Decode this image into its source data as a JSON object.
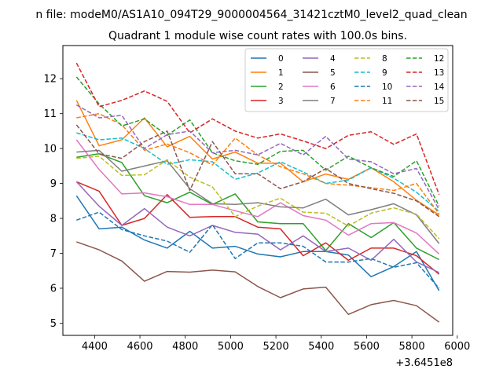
{
  "header": {
    "filename_line": "n file: modeM0/AS1A10_094T29_9000004564_31421cztM0_level2_quad_clean",
    "title": "Quadrant 1 module wise count rates with 100.0s bins."
  },
  "chart_data": {
    "type": "line",
    "title": "Quadrant 1 module wise count rates with 100.0s bins.",
    "xlabel": "",
    "ylabel": "",
    "x_offset_label": "+3.6451e8",
    "x_offset": 364510000,
    "xlim": [
      4260,
      5980
    ],
    "ylim": [
      4.65,
      12.95
    ],
    "xticks": [
      4400,
      4600,
      4800,
      5000,
      5200,
      5400,
      5600,
      5800,
      6000
    ],
    "xtick_labels": [
      "4400",
      "4600",
      "4800",
      "5000",
      "5200",
      "5400",
      "5600",
      "5800",
      "6000"
    ],
    "yticks": [
      5,
      6,
      7,
      8,
      9,
      10,
      11,
      12
    ],
    "ytick_labels": [
      "5",
      "6",
      "7",
      "8",
      "9",
      "10",
      "11",
      "12"
    ],
    "grid": false,
    "legend_position": "top-right",
    "legend_columns": 4,
    "x": [
      4320,
      4420,
      4520,
      4620,
      4720,
      4820,
      4920,
      5020,
      5120,
      5220,
      5320,
      5420,
      5520,
      5620,
      5720,
      5820,
      5920
    ],
    "series": [
      {
        "name": "0",
        "color": "#1f77b4",
        "dash": "solid",
        "values": [
          8.65,
          7.7,
          7.75,
          7.38,
          7.15,
          7.63,
          7.15,
          7.2,
          6.98,
          6.9,
          7.05,
          7.05,
          6.95,
          6.33,
          6.62,
          7.05,
          5.93
        ]
      },
      {
        "name": "1",
        "color": "#ff7f0e",
        "dash": "solid",
        "values": [
          11.38,
          10.08,
          10.25,
          10.88,
          10.05,
          10.35,
          9.7,
          9.9,
          9.58,
          9.58,
          9.05,
          9.27,
          9.12,
          9.45,
          9.05,
          8.52,
          8.1
        ]
      },
      {
        "name": "2",
        "color": "#2ca02c",
        "dash": "solid",
        "values": [
          9.75,
          9.85,
          9.6,
          8.65,
          8.45,
          8.75,
          8.4,
          8.7,
          7.9,
          7.85,
          7.85,
          7.08,
          7.85,
          7.45,
          7.88,
          7.15,
          6.82
        ]
      },
      {
        "name": "3",
        "color": "#d62728",
        "dash": "solid",
        "values": [
          9.05,
          8.78,
          7.8,
          8.0,
          8.68,
          8.03,
          8.05,
          8.05,
          7.75,
          7.7,
          6.93,
          7.3,
          6.8,
          7.15,
          7.15,
          6.93,
          6.4
        ]
      },
      {
        "name": "4",
        "color": "#9467bd",
        "dash": "solid",
        "values": [
          9.05,
          8.35,
          7.8,
          8.28,
          7.75,
          7.5,
          7.8,
          7.6,
          7.55,
          7.1,
          7.5,
          7.05,
          7.15,
          6.8,
          7.4,
          6.75,
          6.45
        ]
      },
      {
        "name": "5",
        "color": "#8c564b",
        "dash": "solid",
        "values": [
          7.33,
          7.1,
          6.78,
          6.2,
          6.48,
          6.46,
          6.52,
          6.47,
          6.05,
          5.73,
          5.98,
          6.03,
          5.25,
          5.53,
          5.65,
          5.5,
          5.03
        ]
      },
      {
        "name": "6",
        "color": "#e377c2",
        "dash": "solid",
        "values": [
          10.25,
          9.4,
          8.7,
          8.73,
          8.62,
          8.4,
          8.4,
          8.22,
          8.05,
          8.45,
          8.08,
          7.95,
          7.52,
          7.85,
          7.88,
          7.58,
          6.98
        ]
      },
      {
        "name": "7",
        "color": "#7f7f7f",
        "dash": "solid",
        "values": [
          9.9,
          9.95,
          9.35,
          9.5,
          9.65,
          8.85,
          8.42,
          8.4,
          8.45,
          8.33,
          8.3,
          8.55,
          8.1,
          8.25,
          8.42,
          8.1,
          7.28
        ]
      },
      {
        "name": "8",
        "color": "#bcbd22",
        "dash": "dashed",
        "values": [
          9.72,
          9.78,
          9.23,
          9.25,
          9.68,
          9.18,
          8.9,
          8.05,
          8.35,
          8.58,
          8.18,
          8.15,
          7.78,
          8.15,
          8.3,
          8.12,
          7.42
        ]
      },
      {
        "name": "9",
        "color": "#17becf",
        "dash": "dashed",
        "values": [
          10.45,
          10.25,
          10.3,
          10.0,
          9.55,
          9.68,
          9.62,
          9.12,
          9.3,
          9.62,
          9.33,
          9.0,
          9.1,
          9.45,
          9.15,
          8.75,
          8.2
        ]
      },
      {
        "name": "10",
        "color": "#1f77b4",
        "dash": "dashed",
        "values": [
          7.95,
          8.18,
          7.68,
          7.5,
          7.35,
          7.03,
          7.82,
          6.85,
          7.3,
          7.3,
          7.2,
          6.75,
          6.75,
          6.85,
          6.6,
          6.73,
          6.0
        ]
      },
      {
        "name": "11",
        "color": "#ff7f0e",
        "dash": "dashed",
        "values": [
          10.88,
          11.0,
          10.68,
          9.95,
          10.13,
          9.88,
          9.53,
          10.3,
          9.82,
          9.48,
          9.28,
          9.0,
          8.95,
          8.88,
          8.8,
          9.0,
          8.13
        ]
      },
      {
        "name": "12",
        "color": "#2ca02c",
        "dash": "dashed",
        "values": [
          12.05,
          11.28,
          10.65,
          10.85,
          10.38,
          10.82,
          9.88,
          9.65,
          9.55,
          9.92,
          9.95,
          9.38,
          9.78,
          9.45,
          9.2,
          9.65,
          8.35
        ]
      },
      {
        "name": "13",
        "color": "#d62728",
        "dash": "dashed",
        "values": [
          12.45,
          11.2,
          11.38,
          11.65,
          11.35,
          10.45,
          10.85,
          10.5,
          10.3,
          10.42,
          10.22,
          10.0,
          10.38,
          10.48,
          10.12,
          10.42,
          8.68
        ]
      },
      {
        "name": "14",
        "color": "#9467bd",
        "dash": "dashed",
        "values": [
          11.25,
          10.88,
          10.95,
          10.0,
          10.4,
          10.5,
          9.88,
          9.95,
          9.82,
          10.15,
          9.82,
          10.35,
          9.7,
          9.62,
          9.28,
          9.43,
          8.25
        ]
      },
      {
        "name": "15",
        "color": "#8c564b",
        "dash": "dashed",
        "values": [
          10.68,
          9.85,
          9.72,
          10.2,
          10.5,
          8.8,
          10.2,
          9.28,
          9.28,
          8.85,
          9.05,
          9.43,
          9.0,
          8.85,
          8.72,
          8.5,
          8.05
        ]
      }
    ]
  }
}
